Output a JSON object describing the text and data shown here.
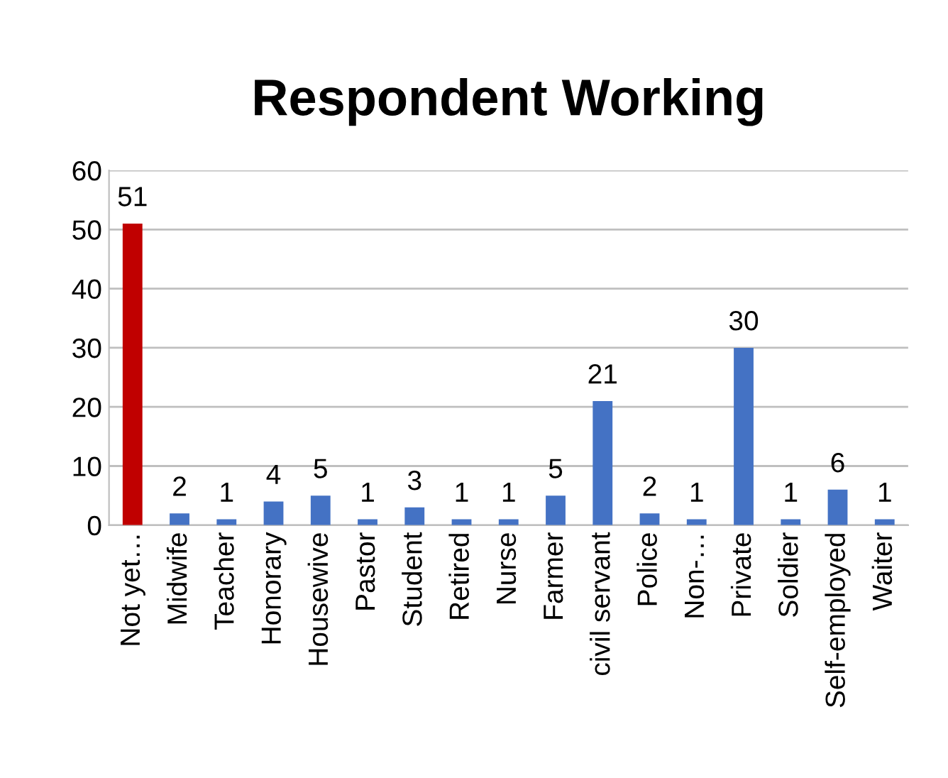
{
  "chart_data": {
    "type": "bar",
    "title": "Respondent Working",
    "categories": [
      "Not yet…",
      "Midwife",
      "Teacher",
      "Honorary",
      "Housewive",
      "Pastor",
      "Student",
      "Retired",
      "Nurse",
      "Farmer",
      "civil servant",
      "Police",
      "Non-…",
      "Private",
      "Soldier",
      "Self-employed",
      "Waiter"
    ],
    "values": [
      51,
      2,
      1,
      4,
      5,
      1,
      3,
      1,
      1,
      5,
      21,
      2,
      1,
      30,
      1,
      6,
      1
    ],
    "colors": [
      "#c00000",
      "#4472c4",
      "#4472c4",
      "#4472c4",
      "#4472c4",
      "#4472c4",
      "#4472c4",
      "#4472c4",
      "#4472c4",
      "#4472c4",
      "#4472c4",
      "#4472c4",
      "#4472c4",
      "#4472c4",
      "#4472c4",
      "#4472c4",
      "#4472c4"
    ],
    "ylim": [
      0,
      60
    ],
    "yticks": [
      0,
      10,
      20,
      30,
      40,
      50,
      60
    ],
    "grid": "y",
    "data_labels": true,
    "legend": false
  }
}
